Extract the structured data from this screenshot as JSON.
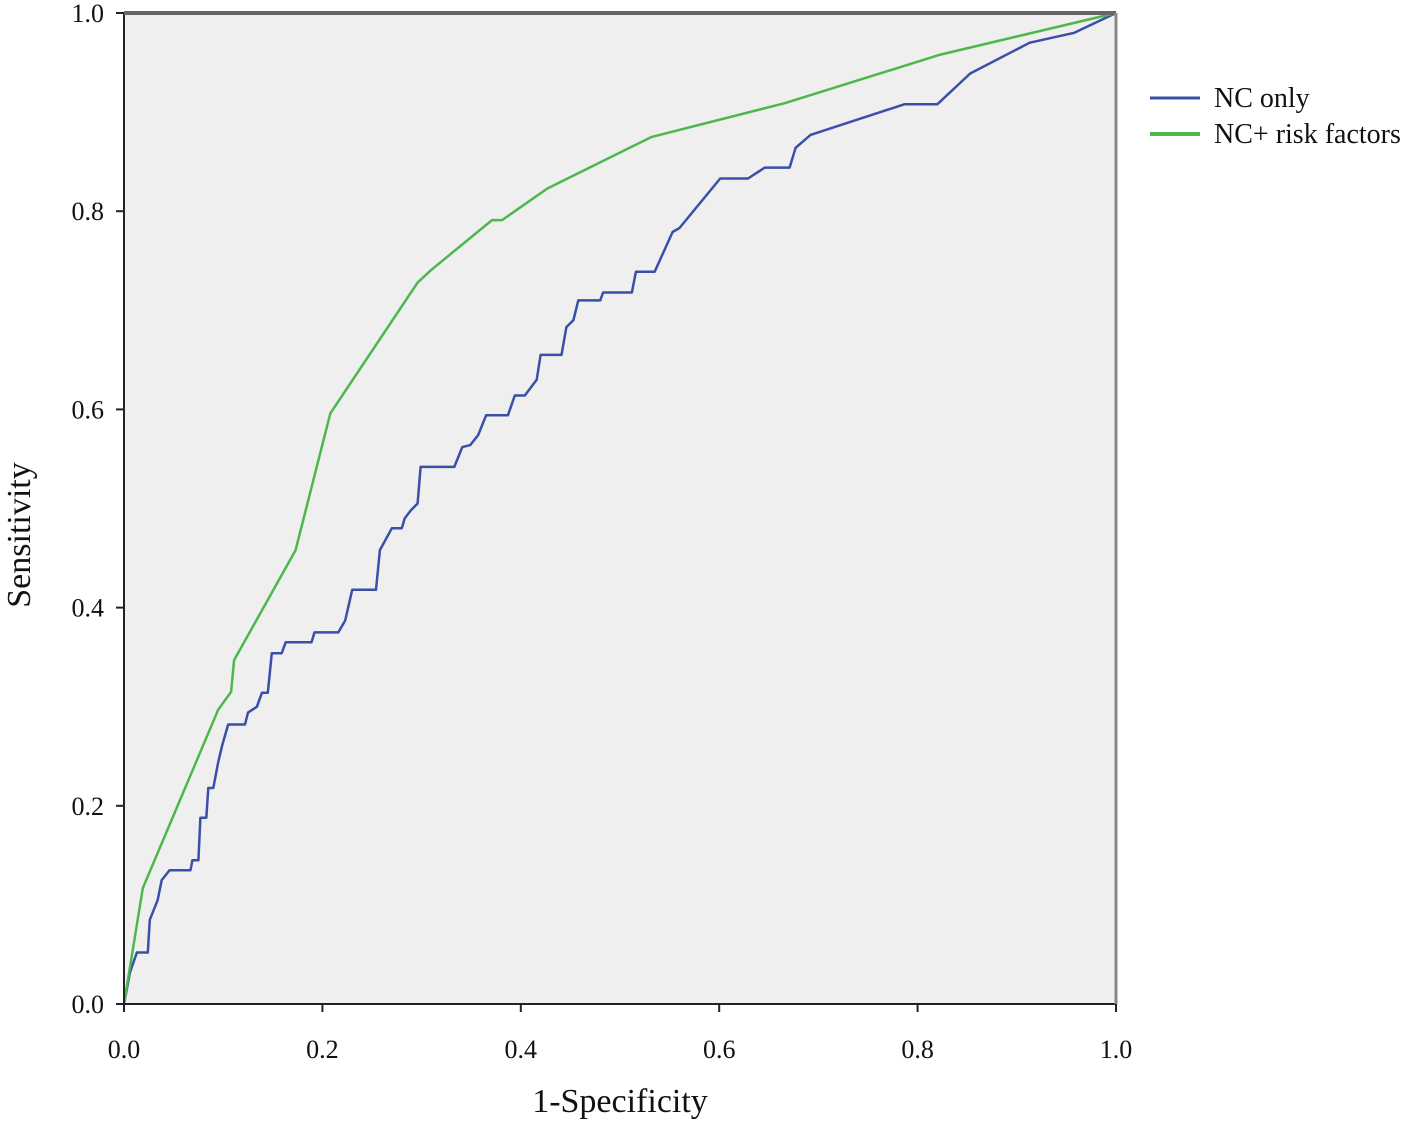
{
  "chart_data": {
    "type": "line",
    "title": "",
    "xlabel": "1-Specificity",
    "ylabel": "Sensitivity",
    "xlim": [
      0,
      1
    ],
    "ylim": [
      0,
      1
    ],
    "xticks": [
      "0.0",
      "0.2",
      "0.4",
      "0.6",
      "0.8",
      "1.0"
    ],
    "yticks": [
      "0.0",
      "0.2",
      "0.4",
      "0.6",
      "0.8",
      "1.0"
    ],
    "grid": false,
    "legend_position": "right",
    "background_color": "#efefef",
    "series": [
      {
        "name": "NC only",
        "color": "#3a4fa8",
        "step": true,
        "points": [
          [
            0,
            0
          ],
          [
            0.006,
            0.032
          ],
          [
            0.013,
            0.052
          ],
          [
            0.024,
            0.052
          ],
          [
            0.026,
            0.085
          ],
          [
            0.034,
            0.105
          ],
          [
            0.038,
            0.125
          ],
          [
            0.046,
            0.135
          ],
          [
            0.067,
            0.135
          ],
          [
            0.069,
            0.145
          ],
          [
            0.075,
            0.145
          ],
          [
            0.077,
            0.188
          ],
          [
            0.083,
            0.188
          ],
          [
            0.085,
            0.218
          ],
          [
            0.09,
            0.218
          ],
          [
            0.095,
            0.244
          ],
          [
            0.099,
            0.261
          ],
          [
            0.105,
            0.282
          ],
          [
            0.122,
            0.282
          ],
          [
            0.125,
            0.294
          ],
          [
            0.134,
            0.3
          ],
          [
            0.139,
            0.314
          ],
          [
            0.145,
            0.314
          ],
          [
            0.149,
            0.354
          ],
          [
            0.159,
            0.354
          ],
          [
            0.163,
            0.365
          ],
          [
            0.189,
            0.365
          ],
          [
            0.192,
            0.375
          ],
          [
            0.216,
            0.375
          ],
          [
            0.223,
            0.387
          ],
          [
            0.23,
            0.418
          ],
          [
            0.254,
            0.418
          ],
          [
            0.258,
            0.458
          ],
          [
            0.27,
            0.48
          ],
          [
            0.28,
            0.48
          ],
          [
            0.283,
            0.49
          ],
          [
            0.289,
            0.498
          ],
          [
            0.296,
            0.505
          ],
          [
            0.299,
            0.542
          ],
          [
            0.333,
            0.542
          ],
          [
            0.341,
            0.562
          ],
          [
            0.349,
            0.564
          ],
          [
            0.357,
            0.574
          ],
          [
            0.365,
            0.594
          ],
          [
            0.387,
            0.594
          ],
          [
            0.394,
            0.614
          ],
          [
            0.404,
            0.614
          ],
          [
            0.416,
            0.63
          ],
          [
            0.42,
            0.655
          ],
          [
            0.441,
            0.655
          ],
          [
            0.446,
            0.683
          ],
          [
            0.453,
            0.69
          ],
          [
            0.458,
            0.71
          ],
          [
            0.48,
            0.71
          ],
          [
            0.483,
            0.718
          ],
          [
            0.512,
            0.718
          ],
          [
            0.516,
            0.739
          ],
          [
            0.535,
            0.739
          ],
          [
            0.553,
            0.779
          ],
          [
            0.56,
            0.783
          ],
          [
            0.601,
            0.833
          ],
          [
            0.629,
            0.833
          ],
          [
            0.646,
            0.844
          ],
          [
            0.671,
            0.844
          ],
          [
            0.677,
            0.864
          ],
          [
            0.692,
            0.877
          ],
          [
            0.787,
            0.908
          ],
          [
            0.82,
            0.908
          ],
          [
            0.853,
            0.939
          ],
          [
            0.913,
            0.97
          ],
          [
            0.958,
            0.98
          ],
          [
            1,
            1
          ]
        ]
      },
      {
        "name": "NC+ risk factors",
        "color": "#4cb84c",
        "step": false,
        "points": [
          [
            0,
            0
          ],
          [
            0.019,
            0.117
          ],
          [
            0.095,
            0.297
          ],
          [
            0.108,
            0.315
          ],
          [
            0.111,
            0.347
          ],
          [
            0.173,
            0.458
          ],
          [
            0.208,
            0.596
          ],
          [
            0.296,
            0.728
          ],
          [
            0.31,
            0.741
          ],
          [
            0.371,
            0.791
          ],
          [
            0.381,
            0.791
          ],
          [
            0.427,
            0.823
          ],
          [
            0.532,
            0.875
          ],
          [
            0.666,
            0.909
          ],
          [
            0.823,
            0.958
          ],
          [
            1,
            1
          ]
        ]
      }
    ]
  }
}
